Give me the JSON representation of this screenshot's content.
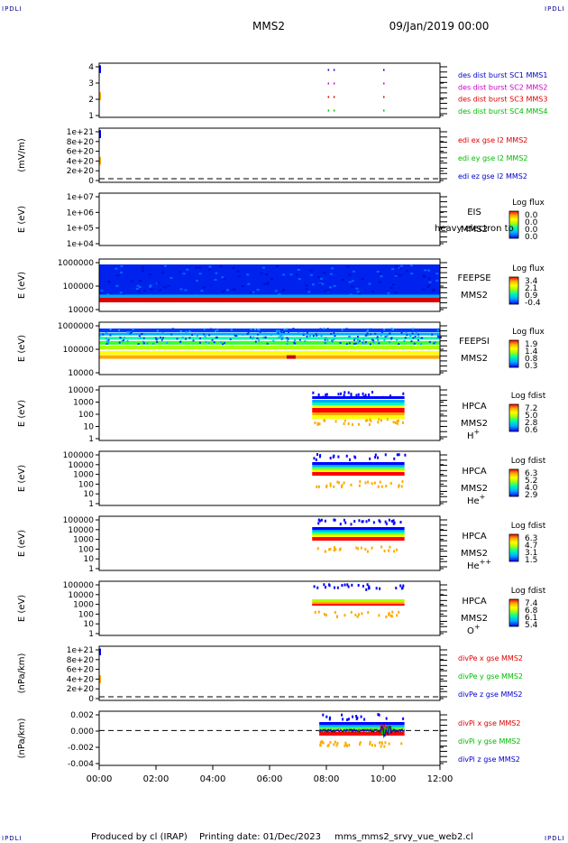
{
  "page": {
    "corner_text": "IPDLI",
    "mission": "MMS2",
    "date_time": "09/Jan/2019 00:00",
    "footer_produced": "Produced by cl (IRAP)",
    "footer_date": "Printing date: 01/Dec/2023",
    "footer_file": "mms_mms2_srvy_vue_web2.cl"
  },
  "chart_data": [
    {
      "type": "scatter",
      "id": "burst",
      "ylabel": "",
      "ylim": [
        0.5,
        4.5
      ],
      "yticks": [
        "1",
        "2",
        "3",
        "4"
      ],
      "legend": [
        {
          "text": "des dist burst SC1 MMS1",
          "color": "#0000cc"
        },
        {
          "text": "des dist burst SC2 MMS2",
          "color": "#cc00cc"
        },
        {
          "text": "des dist burst SC3 MMS3",
          "color": "#dd0000"
        },
        {
          "text": "des dist burst SC4 MMS4",
          "color": "#00bb00"
        }
      ],
      "markers_hours": [
        8.05,
        8.25,
        10.0
      ]
    },
    {
      "type": "line",
      "id": "edi",
      "ylabel": "(mV/m)",
      "yticks": [
        "0",
        "2e+20",
        "4e+20",
        "6e+20",
        "8e+20",
        "1e+21"
      ],
      "legend": [
        {
          "text": "edi ex gse l2 MMS2",
          "color": "#dd0000"
        },
        {
          "text": "edi ey gse l2 MMS2",
          "color": "#00bb00"
        },
        {
          "text": "edi ez gse l2 MMS2",
          "color": "#0000cc"
        }
      ]
    },
    {
      "type": "heatmap",
      "id": "eis",
      "ylabel": "E (eV)",
      "yticks": [
        "1e+04",
        "1e+05",
        "1e+06",
        "1e+07"
      ],
      "instrument": [
        "EIS",
        "MMS2"
      ],
      "overlay_text": "heavy electron to",
      "colorbar_title": "Log flux",
      "colorbar_ticks": [
        "0.0",
        "0.0",
        "0.0",
        "0.0"
      ]
    },
    {
      "type": "heatmap",
      "id": "feepse",
      "ylabel": "E (eV)",
      "yticks": [
        "10000",
        "100000",
        "1000000"
      ],
      "instrument": [
        "FEEPSE",
        "MMS2"
      ],
      "colorbar_title": "Log flux",
      "colorbar_ticks": [
        "3.4",
        "2.1",
        "0.9",
        "-0.4"
      ],
      "coverage_hours": [
        0,
        12
      ]
    },
    {
      "type": "heatmap",
      "id": "feepsi",
      "ylabel": "E (eV)",
      "yticks": [
        "10000",
        "100000",
        "1000000"
      ],
      "instrument": [
        "FEEPSI",
        "MMS2"
      ],
      "colorbar_title": "Log flux",
      "colorbar_ticks": [
        "1.9",
        "1.4",
        "0.8",
        "0.3"
      ],
      "coverage_hours": [
        0,
        12
      ]
    },
    {
      "type": "heatmap",
      "id": "hpca_h",
      "ylabel": "E (eV)",
      "yticks": [
        "1",
        "10",
        "100",
        "1000",
        "10000"
      ],
      "instrument": [
        "HPCA",
        "MMS2"
      ],
      "species": "H",
      "species_sup": "+",
      "colorbar_title": "Log fdist",
      "colorbar_ticks": [
        "7.2",
        "5.0",
        "2.8",
        "0.6"
      ],
      "coverage_hours": [
        7.5,
        10.75
      ]
    },
    {
      "type": "heatmap",
      "id": "hpca_he",
      "ylabel": "E (eV)",
      "yticks": [
        "1",
        "10",
        "100",
        "1000",
        "10000",
        "100000"
      ],
      "instrument": [
        "HPCA",
        "MMS2"
      ],
      "species": "He",
      "species_sup": "+",
      "colorbar_title": "Log fdist",
      "colorbar_ticks": [
        "6.3",
        "5.2",
        "4.0",
        "2.9"
      ],
      "coverage_hours": [
        7.5,
        10.75
      ]
    },
    {
      "type": "heatmap",
      "id": "hpca_he2",
      "ylabel": "E (eV)",
      "yticks": [
        "1",
        "10",
        "100",
        "1000",
        "10000",
        "100000"
      ],
      "instrument": [
        "HPCA",
        "MMS2"
      ],
      "species": "He",
      "species_sup": "++",
      "colorbar_title": "Log fdist",
      "colorbar_ticks": [
        "6.3",
        "4.7",
        "3.1",
        "1.5"
      ],
      "coverage_hours": [
        7.5,
        10.75
      ]
    },
    {
      "type": "heatmap",
      "id": "hpca_o",
      "ylabel": "E (eV)",
      "yticks": [
        "1",
        "10",
        "100",
        "1000",
        "10000",
        "100000"
      ],
      "instrument": [
        "HPCA",
        "MMS2"
      ],
      "species": "O",
      "species_sup": "+",
      "colorbar_title": "Log fdist",
      "colorbar_ticks": [
        "7.4",
        "6.8",
        "6.1",
        "5.4"
      ],
      "coverage_hours": [
        7.5,
        10.75
      ]
    },
    {
      "type": "line",
      "id": "divpe",
      "ylabel": "(nPa/km)",
      "yticks": [
        "0",
        "2e+20",
        "4e+20",
        "6e+20",
        "8e+20",
        "1e+21"
      ],
      "legend": [
        {
          "text": "divPe x gse MMS2",
          "color": "#dd0000"
        },
        {
          "text": "divPe y gse MMS2",
          "color": "#00bb00"
        },
        {
          "text": "divPe z gse MMS2",
          "color": "#0000cc"
        }
      ]
    },
    {
      "type": "line",
      "id": "divpi",
      "ylabel": "(nPa/km)",
      "yticks": [
        "-0.004",
        "-0.002",
        "0.000",
        "0.002"
      ],
      "ylim": [
        -0.0045,
        0.0025
      ],
      "legend": [
        {
          "text": "divPi x gse MMS2",
          "color": "#dd0000"
        },
        {
          "text": "divPi y gse MMS2",
          "color": "#00bb00"
        },
        {
          "text": "divPi z gse MMS2",
          "color": "#0000cc"
        }
      ],
      "coverage_hours": [
        7.75,
        10.75
      ]
    }
  ],
  "x_axis": {
    "range_hours": [
      0,
      12
    ],
    "tick_labels": [
      "00:00",
      "02:00",
      "04:00",
      "06:00",
      "08:00",
      "10:00",
      "12:00"
    ]
  },
  "colormap": [
    "#0000ff",
    "#00aaff",
    "#00ffaa",
    "#aaff00",
    "#ffff00",
    "#ffaa00",
    "#ff0000"
  ]
}
